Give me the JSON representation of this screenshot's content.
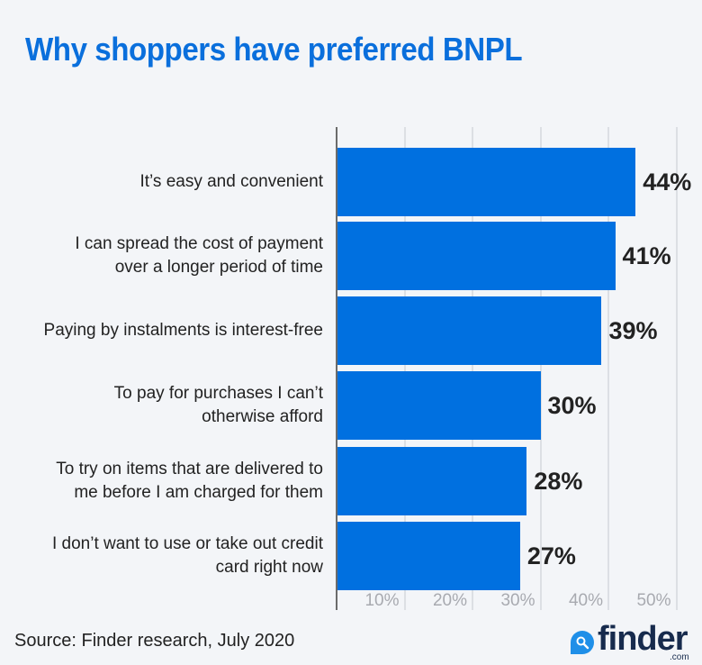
{
  "chart_data": {
    "type": "bar",
    "orientation": "horizontal",
    "title": "Why shoppers have preferred BNPL",
    "categories": [
      "It’s easy and convenient",
      "I can spread the cost of payment over a longer period of time",
      "Paying by  instalments is interest-free",
      "To pay for purchases I can’t otherwise afford",
      "To try on items that are delivered to me before I am charged for them",
      "I don’t want to use or take out credit card right now"
    ],
    "values": [
      44,
      41,
      39,
      30,
      28,
      27
    ],
    "value_labels": [
      "44%",
      "41%",
      "39%",
      "30%",
      "28%",
      "27%"
    ],
    "xlabel": "",
    "ylabel": "",
    "xlim": [
      0,
      50
    ],
    "x_ticks": [
      "10%",
      "20%",
      "30%",
      "40%",
      "50%"
    ],
    "grid": true,
    "bar_color": "#0070e0",
    "legend": null
  },
  "labels_display": [
    [
      "It’s easy and convenient"
    ],
    [
      "I can spread the cost of payment",
      "over a longer period of time"
    ],
    [
      "Paying by  instalments is interest-free"
    ],
    [
      "To pay for purchases I can’t",
      "otherwise afford"
    ],
    [
      "To try on items that are delivered to",
      "me before I am charged for them"
    ],
    [
      "I don’t want to use or take out credit",
      "card right now"
    ]
  ],
  "source": "Source: Finder research, July 2020",
  "logo": {
    "word": "finder",
    "suffix": ".com",
    "icon": "search-drop-icon",
    "accent": "#1f8fe8"
  },
  "colors": {
    "title": "#0a6fdc",
    "bar": "#0070e0",
    "background": "#f3f5f8"
  }
}
